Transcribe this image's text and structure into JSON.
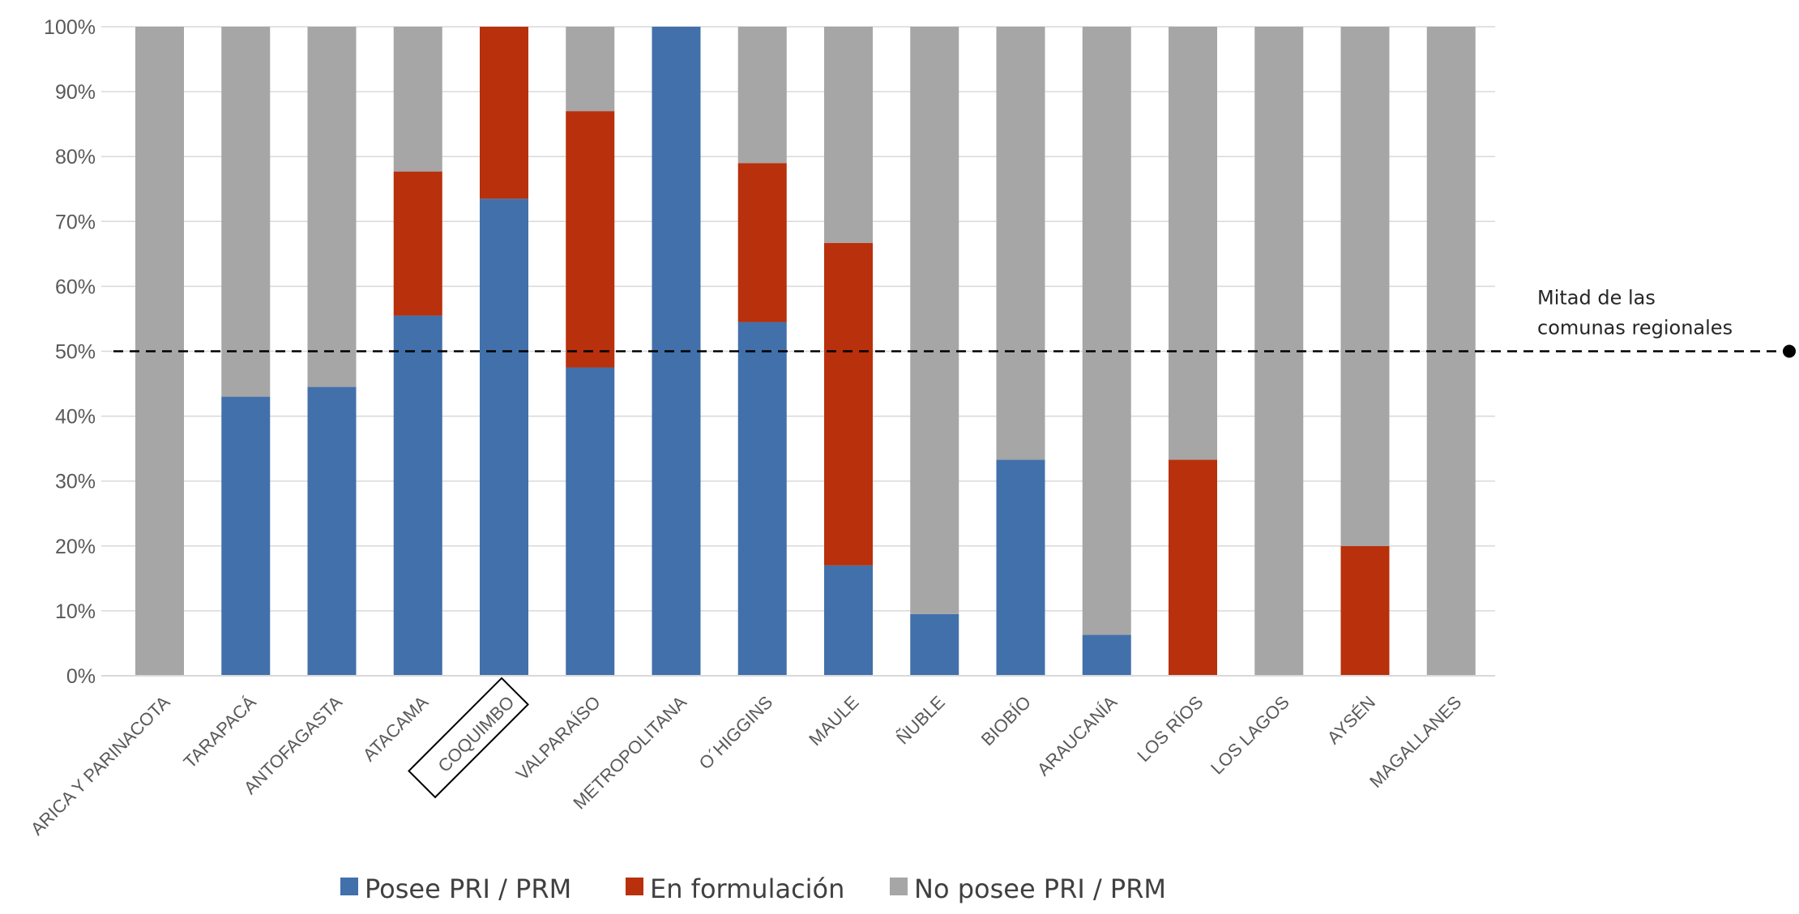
{
  "chart_data": {
    "type": "bar",
    "stacked": true,
    "categories": [
      "ARICA Y PARINACOTA",
      "TARAPACÁ",
      "ANTOFAGASTA",
      "ATACAMA",
      "COQUIMBO",
      "VALPARAÍSO",
      "METROPOLITANA",
      "O´HIGGINS",
      "MAULE",
      "ÑUBLE",
      "BIOBÍO",
      "ARAUCANÍA",
      "LOS RÍOS",
      "LOS LAGOS",
      "AYSÉN",
      "MAGALLANES"
    ],
    "series": [
      {
        "name": "Posee PRI / PRM",
        "color": "#4270aa",
        "values": [
          0,
          43,
          44.5,
          55.5,
          73.5,
          47.5,
          100,
          54.5,
          17,
          9.5,
          33.3,
          6.3,
          0,
          0,
          0,
          0
        ]
      },
      {
        "name": "En formulación",
        "color": "#b8300c",
        "values": [
          0,
          0,
          0,
          22.2,
          26.5,
          39.5,
          0,
          24.5,
          49.7,
          0,
          0,
          0,
          33.3,
          0,
          20,
          0
        ]
      },
      {
        "name": "No posee PRI / PRM",
        "color": "#a6a6a6",
        "values": [
          100,
          57,
          55.5,
          22.3,
          0,
          13,
          0,
          21,
          33.3,
          90.5,
          66.7,
          93.7,
          66.7,
          100,
          80,
          100
        ]
      }
    ],
    "y_ticks": [
      "0%",
      "10%",
      "20%",
      "30%",
      "40%",
      "50%",
      "60%",
      "70%",
      "80%",
      "90%",
      "100%"
    ],
    "ylim": [
      0,
      100
    ],
    "grid": true,
    "legend_position": "bottom",
    "highlighted_category": "COQUIMBO",
    "reference_line": {
      "value": 50,
      "label_line1": "Mitad de las",
      "label_line2": "comunas regionales"
    }
  }
}
